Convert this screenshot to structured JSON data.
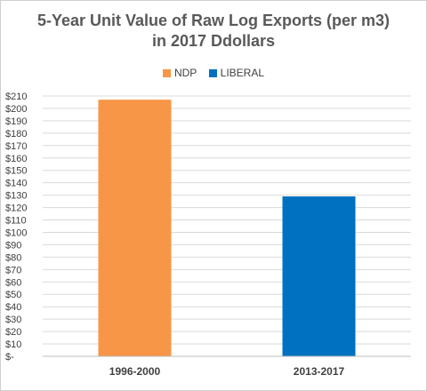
{
  "chart_data": {
    "type": "bar",
    "title_line1": "5-Year Unit Value of Raw Log Exports (per m3)",
    "title_line2": "in 2017 Ddollars",
    "xlabel": "",
    "ylabel": "",
    "categories": [
      "1996-2000",
      "2013-2017"
    ],
    "series": [
      {
        "name": "NDP",
        "values": [
          207,
          null
        ],
        "color": "#f79646"
      },
      {
        "name": "LIBERAL",
        "values": [
          null,
          129
        ],
        "color": "#0070c0"
      }
    ],
    "ylim": [
      0,
      210
    ],
    "ytick_step": 10,
    "ytick_labels": [
      "$-",
      "$10",
      "$20",
      "$30",
      "$40",
      "$50",
      "$60",
      "$70",
      "$80",
      "$90",
      "$100",
      "$110",
      "$120",
      "$130",
      "$140",
      "$150",
      "$160",
      "$170",
      "$180",
      "$190",
      "$200",
      "$210"
    ],
    "grid": true,
    "legend_position": "top-center"
  }
}
